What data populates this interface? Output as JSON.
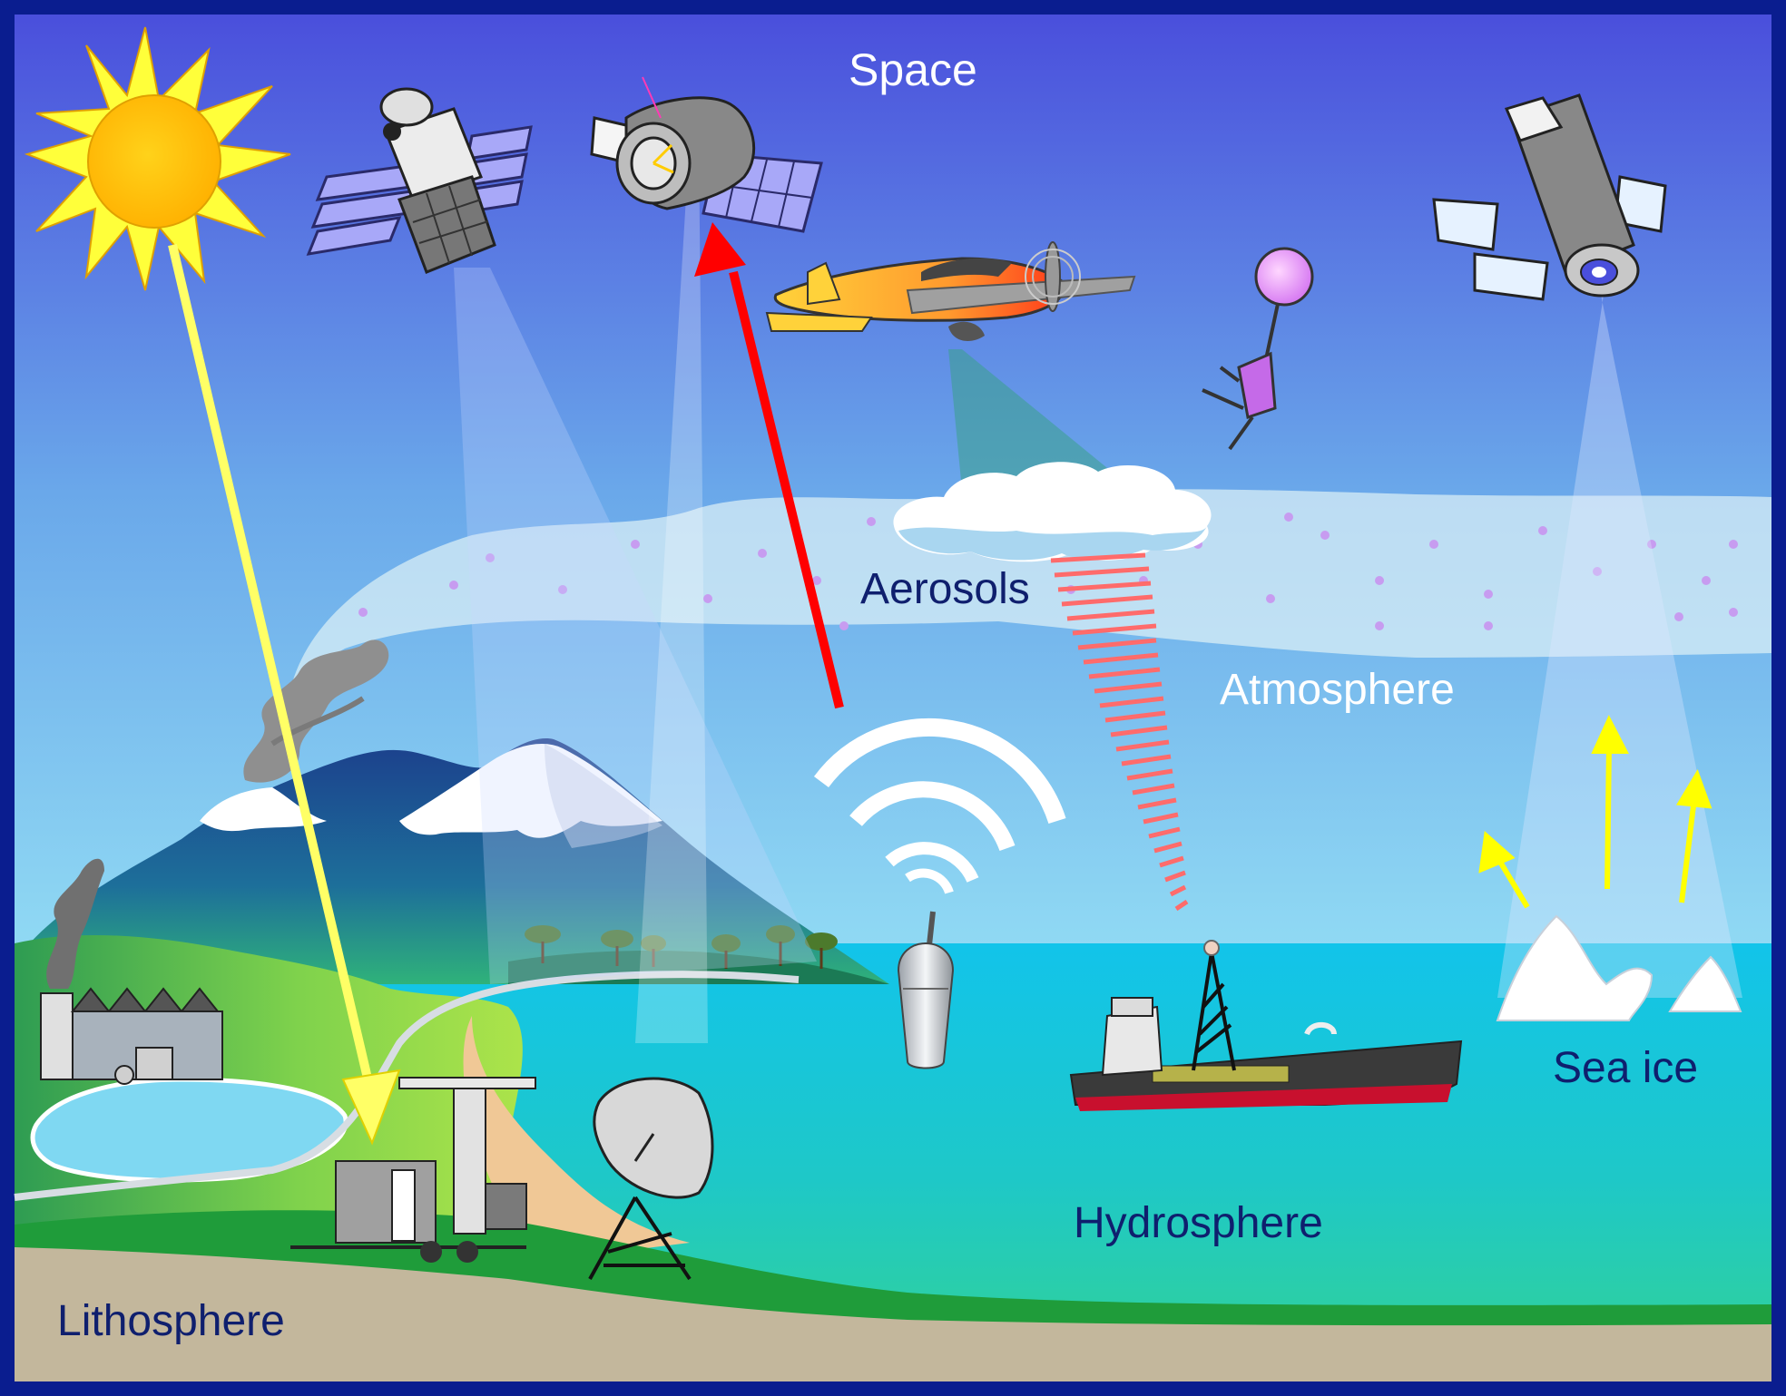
{
  "diagram": {
    "labels": {
      "space": "Space",
      "aerosols": "Aerosols",
      "atmosphere": "Atmosphere",
      "sea_ice": "Sea ice",
      "hydrosphere": "Hydrosphere",
      "lithosphere": "Lithosphere"
    },
    "colors": {
      "frame": "#0a1d8f",
      "sky_top": "#4a4fdc",
      "sky_bottom": "#9ef2fa",
      "ocean": "#10c6e6",
      "ground": "#c3b79c",
      "grass": "#1f9c3a",
      "sun": "#ffcc00",
      "sun_ray": "#ffff66",
      "upward_arrow": "#ff0000",
      "ice_arrows": "#ffff00",
      "radar_beam": "#ff6b6b"
    }
  }
}
